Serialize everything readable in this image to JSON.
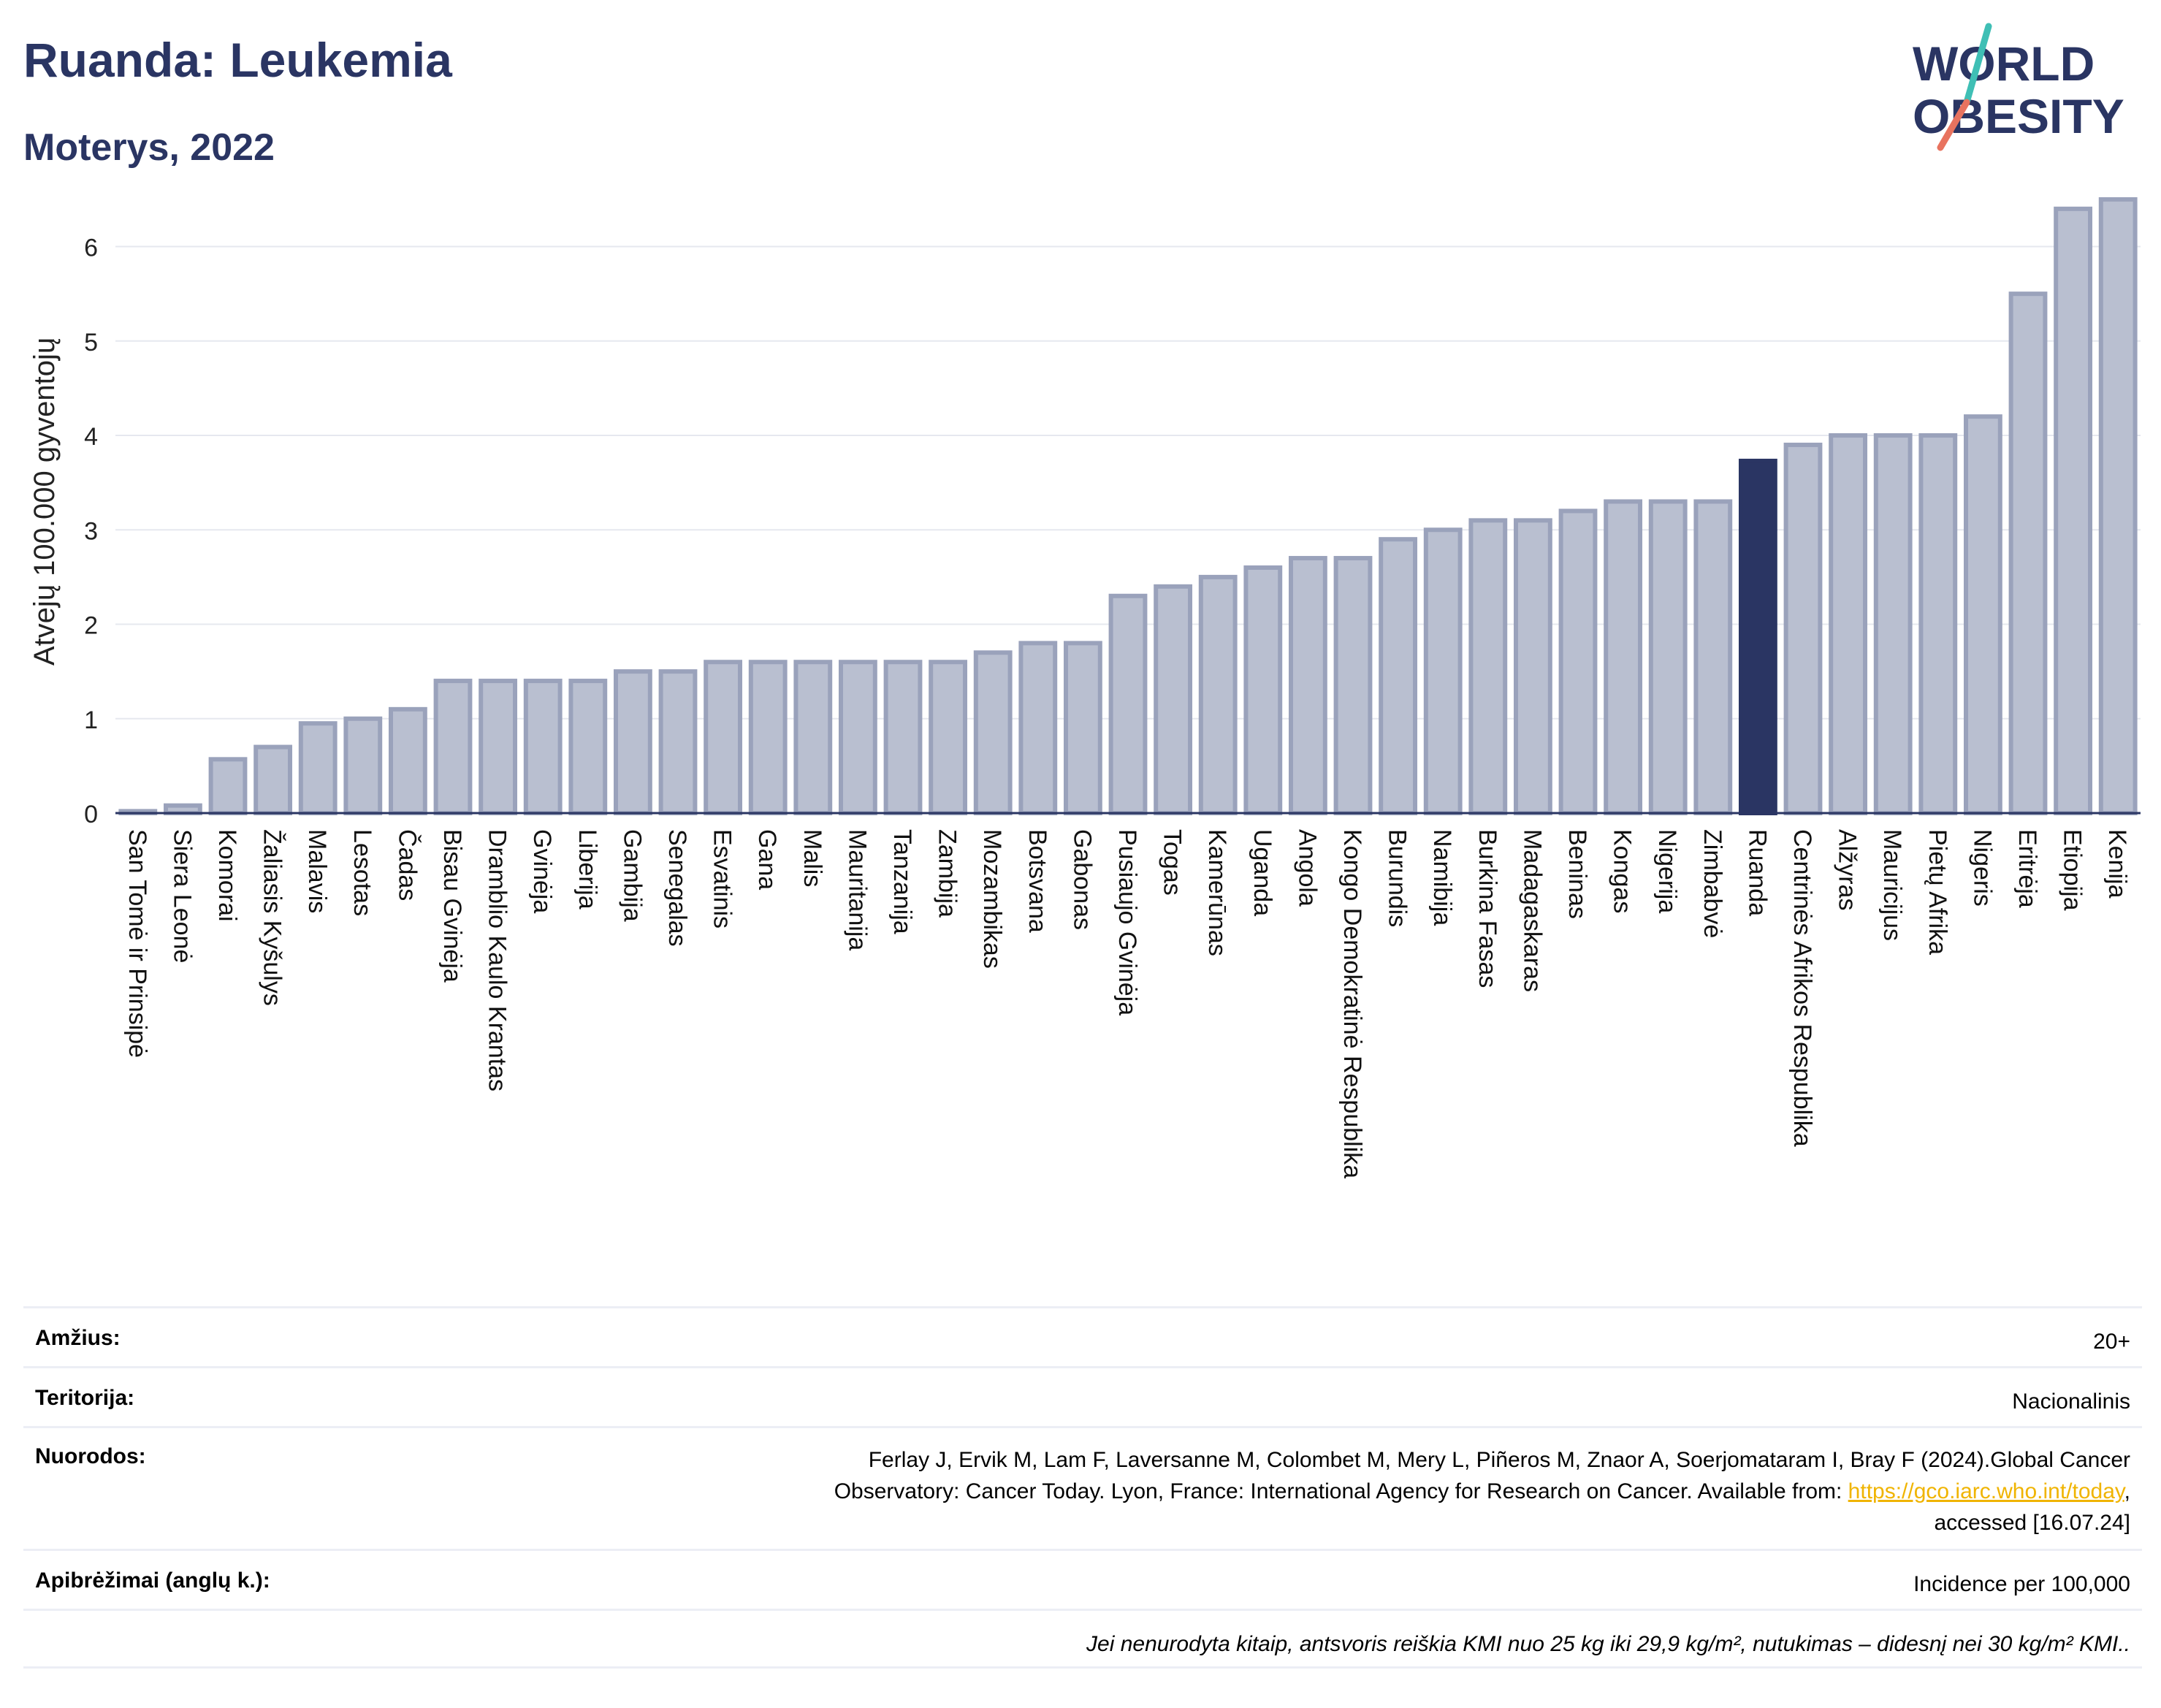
{
  "title": "Ruanda: Leukemia",
  "subtitle": "Moterys, 2022",
  "logo": {
    "line1": "WORLD",
    "line2": "OBESITY"
  },
  "colors": {
    "highlight": "#2a3563",
    "bar_fill": "#b9bfd0",
    "bar_edge": "#9aa2bb",
    "title": "#2a3563",
    "logo_slash_teal": "#3fbfb5",
    "logo_slash_red": "#e8735f"
  },
  "chart_data": {
    "type": "bar",
    "ylabel": "Atvejų 100.000 gyventojų",
    "ylim": [
      0,
      6.6
    ],
    "yticks": [
      0,
      1,
      2,
      3,
      4,
      5,
      6
    ],
    "grid": true,
    "highlight": "Ruanda",
    "categories": [
      "San Tomė ir Prinsipė",
      "Siera Leonė",
      "Komorai",
      "Žaliasis Kyšulys",
      "Malavis",
      "Lesotas",
      "Čadas",
      "Bisau Gvinėja",
      "Dramblio Kaulo Krantas",
      "Gvinėja",
      "Liberija",
      "Gambija",
      "Senegalas",
      "Esvatinis",
      "Gana",
      "Malis",
      "Mauritanija",
      "Tanzanija",
      "Zambija",
      "Mozambikas",
      "Botsvana",
      "Gabonas",
      "Pusiaujo Gvinėja",
      "Togas",
      "Kamerūnas",
      "Uganda",
      "Angola",
      "Kongo Demokratinė Respublika",
      "Burundis",
      "Namibija",
      "Burkina Fasas",
      "Madagaskaras",
      "Beninas",
      "Kongas",
      "Nigerija",
      "Zimbabvė",
      "Ruanda",
      "Centrinės Afrikos Respublika",
      "Alžyras",
      "Mauricijus",
      "Pietų Afrika",
      "Nigeris",
      "Eritrėja",
      "Etiopija",
      "Kenija"
    ],
    "values": [
      0.02,
      0.08,
      0.57,
      0.7,
      0.95,
      1.0,
      1.1,
      1.4,
      1.4,
      1.4,
      1.4,
      1.5,
      1.5,
      1.6,
      1.6,
      1.6,
      1.6,
      1.6,
      1.6,
      1.7,
      1.8,
      1.8,
      2.3,
      2.4,
      2.5,
      2.6,
      2.7,
      2.7,
      2.9,
      3.0,
      3.1,
      3.1,
      3.2,
      3.3,
      3.3,
      3.3,
      3.73,
      3.9,
      4.0,
      4.0,
      4.0,
      4.2,
      5.5,
      6.4,
      6.5
    ]
  },
  "info": {
    "age_label": "Amžius:",
    "age_value": "20+",
    "territory_label": "Teritorija:",
    "territory_value": "Nacionalinis",
    "refs_label": "Nuorodos:",
    "refs_line1": "Ferlay J, Ervik M, Lam F, Laversanne M, Colombet M, Mery L, Piñeros M, Znaor A, Soerjomataram I, Bray F (2024).Global Cancer",
    "refs_line2": "Observatory: Cancer Today. Lyon, France: International Agency for Research on Cancer. Available from: ",
    "refs_link": "https://gco.iarc.who.int/today",
    "refs_line2_end": ",",
    "refs_line3": "accessed [16.07.24]",
    "defs_label": "Apibrėžimai (anglų k.):",
    "defs_value": "Incidence per 100,000",
    "note": "Jei nenurodyta kitaip, antsvoris reiškia KMI nuo 25 kg iki 29,9 kg/m², nutukimas – didesnį nei 30 kg/m² KMI.."
  }
}
